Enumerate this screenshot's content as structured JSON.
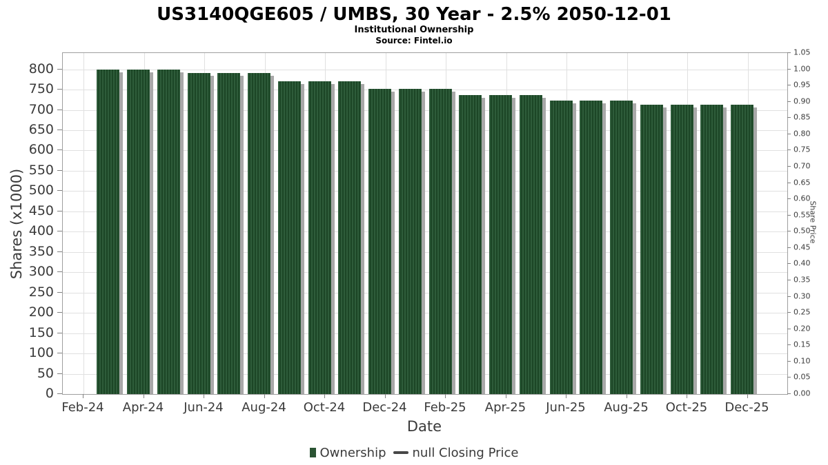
{
  "header": {
    "title": "US3140QGE605 / UMBS, 30 Year - 2.5% 2050-12-01",
    "subtitle": "Institutional Ownership",
    "source": "Source: Fintel.io"
  },
  "axes": {
    "x_title": "Date",
    "y_left_title": "Shares (x1000)",
    "y_right_title": "Share Price"
  },
  "legend": {
    "items": [
      {
        "label": "Ownership",
        "marker": "square",
        "color": "#2b5433"
      },
      {
        "label": "null Closing Price",
        "marker": "dash",
        "color": "#474747"
      }
    ]
  },
  "chart_data": {
    "type": "bar",
    "title": "US3140QGE605 / UMBS, 30 Year - 2.5% 2050-12-01",
    "subtitle": "Institutional Ownership",
    "source": "Source: Fintel.io",
    "xlabel": "Date",
    "ylabel_left": "Shares (x1000)",
    "ylabel_right": "Share Price",
    "categories": [
      "Feb-24",
      "Mar-24",
      "Apr-24",
      "May-24",
      "Jun-24",
      "Jul-24",
      "Aug-24",
      "Sep-24",
      "Oct-24",
      "Nov-24",
      "Dec-24",
      "Jan-25",
      "Feb-25",
      "Mar-25",
      "Apr-25",
      "May-25",
      "Jun-25",
      "Jul-25",
      "Aug-25",
      "Sep-25",
      "Oct-25",
      "Nov-25",
      "Dec-25"
    ],
    "series": [
      {
        "name": "Ownership",
        "type": "bar",
        "color_stripe_dark": "#1c4626",
        "color_stripe_light": "#2e5c3a",
        "shadow_color": "#a8a8a8",
        "values": [
          null,
          800,
          800,
          800,
          790,
          790,
          790,
          770,
          770,
          770,
          752,
          752,
          752,
          737,
          737,
          737,
          723,
          723,
          723,
          712,
          712,
          712,
          712
        ]
      },
      {
        "name": "null Closing Price",
        "type": "line",
        "color": "#474747",
        "values": null
      }
    ],
    "x_tick_labels": [
      "Feb-24",
      "Apr-24",
      "Jun-24",
      "Aug-24",
      "Oct-24",
      "Dec-24",
      "Feb-25",
      "Apr-25",
      "Jun-25",
      "Aug-25",
      "Oct-25",
      "Dec-25"
    ],
    "y_left_ticks": [
      0,
      50,
      100,
      150,
      200,
      250,
      300,
      350,
      400,
      450,
      500,
      550,
      600,
      650,
      700,
      750,
      800
    ],
    "y_right_ticks": [
      "0.00",
      "0.05",
      "0.10",
      "0.15",
      "0.20",
      "0.25",
      "0.30",
      "0.35",
      "0.40",
      "0.45",
      "0.50",
      "0.55",
      "0.60",
      "0.65",
      "0.70",
      "0.75",
      "0.80",
      "0.85",
      "0.90",
      "0.95",
      "1.00",
      "1.05"
    ],
    "ylim_left": [
      0,
      840
    ],
    "ylim_right": [
      0,
      1.05
    ],
    "grid": true,
    "legend_position": "bottom"
  }
}
